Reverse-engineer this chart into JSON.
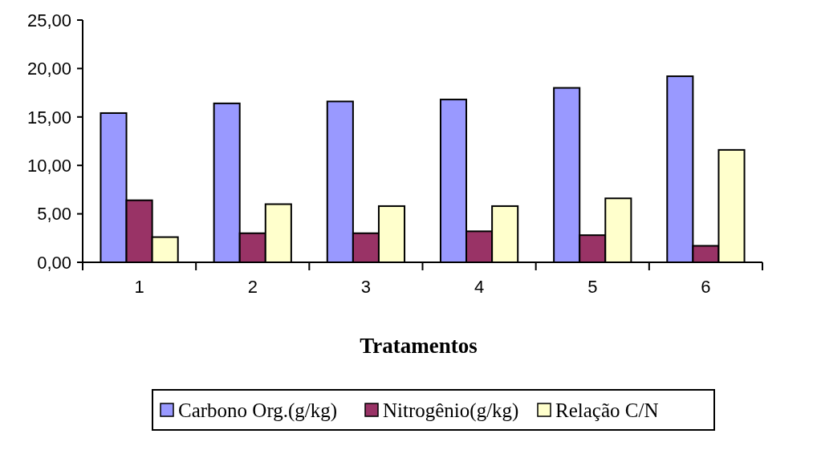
{
  "chart_data": {
    "type": "bar",
    "xlabel": "Tratamentos",
    "categories": [
      "1",
      "2",
      "3",
      "4",
      "5",
      "6"
    ],
    "series": [
      {
        "name": "Carbono Org.(g/kg)",
        "color": "#9999ff",
        "values": [
          15.4,
          16.4,
          16.6,
          16.8,
          18.0,
          19.2
        ]
      },
      {
        "name": "Nitrogênio(g/kg)",
        "color": "#993366",
        "values": [
          6.4,
          3.0,
          3.0,
          3.2,
          2.8,
          1.7
        ]
      },
      {
        "name": "Relação C/N",
        "color": "#ffffcc",
        "values": [
          2.6,
          6.0,
          5.8,
          5.8,
          6.6,
          11.6
        ]
      }
    ],
    "ylim": [
      0,
      25
    ],
    "yticks": [
      {
        "value": 0,
        "label": "0,00"
      },
      {
        "value": 5,
        "label": "5,00"
      },
      {
        "value": 10,
        "label": "10,00"
      },
      {
        "value": 15,
        "label": "15,00"
      },
      {
        "value": 20,
        "label": "20,00"
      },
      {
        "value": 25,
        "label": "25,00"
      }
    ],
    "grid": false,
    "legend": "bottom"
  }
}
